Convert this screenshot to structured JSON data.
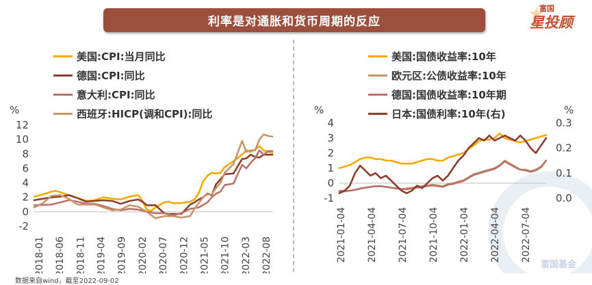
{
  "title": "利率是对通胀和货币周期的反应",
  "brand": {
    "top": "富国",
    "main": "星投顾",
    "watermark": "富国基金"
  },
  "source_note": "数据来自wind，截至2022-09-02",
  "colors": {
    "title_bg": "#9d4f3e"
  },
  "chart_data": [
    {
      "type": "line",
      "unit_left": "%",
      "ylim": [
        -2,
        12
      ],
      "y_ticks": [
        -2,
        0,
        2,
        4,
        6,
        8,
        10,
        12
      ],
      "x_ticks": [
        "2018-01",
        "2018-06",
        "2018-11",
        "2019-04",
        "2019-09",
        "2020-02",
        "2020-07",
        "2020-12",
        "2021-05",
        "2021-10",
        "2022-03",
        "2022-08"
      ],
      "x_range": [
        0,
        55
      ],
      "legend_position": "top-left",
      "series": [
        {
          "name": "美国:CPI:当月同比",
          "color": "#f5a800",
          "x": [
            0,
            2,
            4,
            5,
            6,
            8,
            10,
            12,
            14,
            16,
            18,
            20,
            22,
            24,
            25,
            26,
            27,
            28,
            30,
            31,
            32,
            34,
            36,
            37,
            38,
            39,
            40,
            41,
            42,
            43,
            44,
            46,
            48,
            49,
            50,
            51,
            52,
            53,
            54,
            55
          ],
          "values": [
            2.1,
            2.4,
            2.8,
            2.9,
            2.7,
            2.3,
            1.9,
            1.5,
            1.6,
            2.0,
            1.8,
            1.7,
            2.1,
            2.3,
            1.5,
            0.3,
            0.1,
            0.6,
            1.3,
            1.4,
            1.2,
            1.2,
            1.4,
            1.7,
            2.6,
            4.2,
            5.0,
            5.4,
            5.3,
            5.4,
            6.2,
            7.0,
            7.9,
            8.5,
            8.3,
            8.6,
            9.1,
            8.5,
            8.3,
            8.2
          ]
        },
        {
          "name": "德国:CPI:同比",
          "color": "#8a3e2b",
          "x": [
            0,
            4,
            6,
            8,
            10,
            12,
            14,
            16,
            18,
            20,
            22,
            24,
            25,
            26,
            28,
            30,
            31,
            32,
            34,
            36,
            37,
            38,
            39,
            40,
            41,
            42,
            43,
            44,
            46,
            48,
            49,
            50,
            51,
            52,
            53,
            54,
            55
          ],
          "values": [
            1.6,
            2.0,
            2.1,
            2.3,
            1.9,
            1.4,
            1.5,
            1.6,
            1.5,
            1.1,
            1.5,
            1.7,
            1.4,
            0.9,
            0.9,
            -0.2,
            -0.3,
            -0.3,
            -0.3,
            1.0,
            1.3,
            1.7,
            2.0,
            2.5,
            2.3,
            3.8,
            4.5,
            5.2,
            5.3,
            7.3,
            7.4,
            7.9,
            7.6,
            7.5,
            7.9,
            7.9,
            7.9
          ]
        },
        {
          "name": "意大利:CPI:同比",
          "color": "#b87368",
          "x": [
            0,
            4,
            6,
            8,
            10,
            12,
            14,
            16,
            18,
            20,
            22,
            24,
            26,
            28,
            30,
            32,
            34,
            36,
            38,
            40,
            41,
            42,
            43,
            44,
            46,
            48,
            49,
            50,
            51,
            52,
            53,
            54,
            55
          ],
          "values": [
            0.9,
            1.0,
            1.3,
            1.6,
            1.4,
            1.1,
            1.1,
            0.8,
            0.4,
            0.2,
            0.4,
            0.3,
            0.0,
            -0.2,
            -0.2,
            -0.5,
            -0.2,
            0.4,
            0.6,
            1.3,
            2.0,
            2.5,
            2.8,
            3.7,
            3.9,
            6.5,
            6.0,
            6.8,
            7.4,
            8.5,
            7.9,
            8.4,
            8.4
          ]
        },
        {
          "name": "西班牙:HICP(调和CPI):同比",
          "color": "#c8956a",
          "x": [
            0,
            2,
            4,
            6,
            8,
            10,
            12,
            14,
            16,
            18,
            20,
            22,
            24,
            26,
            28,
            30,
            32,
            34,
            36,
            37,
            38,
            39,
            40,
            41,
            42,
            43,
            44,
            45,
            46,
            48,
            49,
            50,
            51,
            52,
            53,
            54,
            55
          ],
          "values": [
            0.6,
            1.2,
            2.2,
            2.3,
            1.8,
            1.0,
            1.0,
            1.0,
            0.6,
            0.2,
            0.3,
            0.9,
            0.7,
            0.0,
            -0.9,
            -0.6,
            -0.6,
            -0.8,
            -0.6,
            0.4,
            1.2,
            2.0,
            2.4,
            2.4,
            3.3,
            4.0,
            5.4,
            6.0,
            6.6,
            9.8,
            8.3,
            8.5,
            8.5,
            10.0,
            10.7,
            10.5,
            10.4
          ]
        }
      ]
    },
    {
      "type": "line",
      "unit_left": "%",
      "unit_right": "%",
      "ylim": [
        -1,
        4
      ],
      "y_ticks": [
        -1,
        0,
        1,
        2,
        3,
        4
      ],
      "y2lim": [
        0.0,
        0.3
      ],
      "y2_ticks": [
        "0.0",
        "0.1",
        "0.2",
        "0.3"
      ],
      "x_ticks": [
        "2021-01-04",
        "2021-04-04",
        "2021-07-04",
        "2021-10-04",
        "2022-01-04",
        "2022-04-04",
        "2022-07-04"
      ],
      "x_range": [
        0,
        20
      ],
      "legend_position": "top-left",
      "series": [
        {
          "name": "美国:国债收益率:10年",
          "color": "#f5a800",
          "axis": "left",
          "x": [
            0,
            0.5,
            1,
            1.5,
            2,
            2.5,
            3,
            3.5,
            4,
            4.5,
            5,
            5.5,
            6,
            6.5,
            7,
            7.5,
            8,
            8.5,
            9,
            9.5,
            10,
            10.5,
            11,
            11.5,
            12,
            12.5,
            13,
            13.5,
            14,
            14.5,
            15,
            15.5,
            16,
            16.5,
            17,
            17.5,
            18,
            18.5,
            19,
            19.5,
            20
          ],
          "values": [
            1.0,
            1.1,
            1.2,
            1.4,
            1.6,
            1.7,
            1.7,
            1.6,
            1.6,
            1.5,
            1.5,
            1.4,
            1.3,
            1.3,
            1.3,
            1.4,
            1.5,
            1.6,
            1.6,
            1.5,
            1.5,
            1.7,
            1.8,
            1.9,
            2.0,
            2.3,
            2.5,
            2.8,
            2.9,
            2.9,
            3.0,
            3.3,
            3.0,
            2.9,
            2.8,
            2.7,
            2.8,
            2.9,
            3.0,
            3.1,
            3.2
          ]
        },
        {
          "name": "欧元区:公债收益率:10年",
          "color": "#c8956a",
          "axis": "left",
          "x": [
            0,
            0.5,
            1,
            1.5,
            2,
            2.5,
            3,
            3.5,
            4,
            4.5,
            5,
            5.5,
            6,
            6.5,
            7,
            7.5,
            8,
            8.5,
            9,
            9.5,
            10,
            10.5,
            11,
            11.5,
            12,
            12.5,
            13,
            13.5,
            14,
            14.5,
            15,
            15.5,
            16,
            16.5,
            17,
            17.5,
            18,
            18.5,
            19,
            19.5,
            20
          ],
          "values": [
            -0.5,
            -0.5,
            -0.5,
            -0.45,
            -0.35,
            -0.3,
            -0.25,
            -0.2,
            -0.2,
            -0.25,
            -0.3,
            -0.35,
            -0.4,
            -0.35,
            -0.3,
            -0.25,
            -0.2,
            -0.15,
            -0.1,
            -0.15,
            -0.2,
            -0.05,
            0.0,
            0.1,
            0.2,
            0.4,
            0.6,
            0.7,
            0.8,
            0.9,
            1.0,
            1.2,
            1.5,
            1.3,
            1.1,
            0.9,
            0.9,
            0.8,
            0.9,
            1.1,
            1.5
          ]
        },
        {
          "name": "德国:国债收益率:10年期",
          "color": "#b87368",
          "axis": "left",
          "x": [
            0,
            0.5,
            1,
            1.5,
            2,
            2.5,
            3,
            3.5,
            4,
            4.5,
            5,
            5.5,
            6,
            6.5,
            7,
            7.5,
            8,
            8.5,
            9,
            9.5,
            10,
            10.5,
            11,
            11.5,
            12,
            12.5,
            13,
            13.5,
            14,
            14.5,
            15,
            15.5,
            16,
            16.5,
            17,
            17.5,
            18,
            18.5,
            19,
            19.5,
            20
          ],
          "values": [
            -0.55,
            -0.55,
            -0.5,
            -0.45,
            -0.35,
            -0.3,
            -0.25,
            -0.2,
            -0.2,
            -0.25,
            -0.3,
            -0.35,
            -0.4,
            -0.4,
            -0.35,
            -0.3,
            -0.25,
            -0.2,
            -0.15,
            -0.2,
            -0.25,
            -0.1,
            -0.05,
            0.05,
            0.15,
            0.35,
            0.55,
            0.65,
            0.75,
            0.85,
            0.95,
            1.15,
            1.45,
            1.25,
            1.05,
            0.9,
            0.85,
            0.75,
            0.85,
            1.05,
            1.5
          ]
        },
        {
          "name": "日本:国债利率:10年(右)",
          "color": "#8a3e2b",
          "axis": "right",
          "x": [
            0,
            0.5,
            1,
            1.5,
            2,
            2.5,
            3,
            3.5,
            4,
            4.5,
            5,
            5.5,
            6,
            6.5,
            7,
            7.5,
            8,
            8.5,
            9,
            9.5,
            10,
            10.5,
            11,
            11.5,
            12,
            12.5,
            13,
            13.5,
            14,
            14.5,
            15,
            15.5,
            16,
            16.5,
            17,
            17.5,
            18,
            18.5,
            19,
            19.5,
            20
          ],
          "values": [
            0.02,
            0.03,
            0.05,
            0.1,
            0.13,
            0.11,
            0.09,
            0.1,
            0.08,
            0.09,
            0.07,
            0.05,
            0.03,
            0.02,
            0.03,
            0.05,
            0.04,
            0.06,
            0.08,
            0.09,
            0.07,
            0.09,
            0.12,
            0.15,
            0.17,
            0.2,
            0.22,
            0.24,
            0.23,
            0.25,
            0.23,
            0.24,
            0.25,
            0.24,
            0.23,
            0.25,
            0.23,
            0.2,
            0.18,
            0.21,
            0.24
          ]
        }
      ]
    }
  ]
}
